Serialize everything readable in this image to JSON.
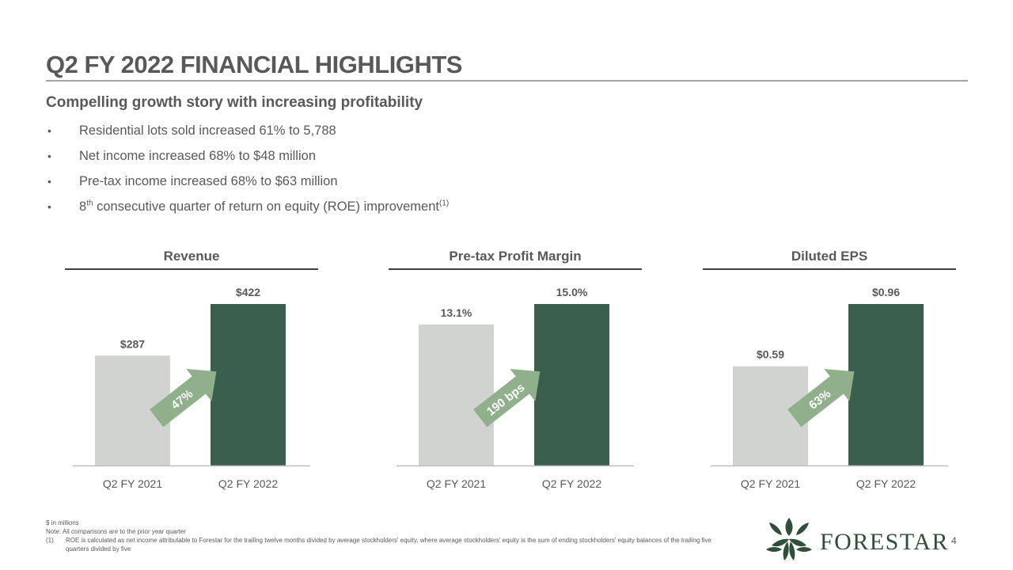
{
  "header": {
    "title": "Q2 FY 2022 FINANCIAL HIGHLIGHTS",
    "subtitle": "Compelling growth story with increasing profitability"
  },
  "bullets": [
    {
      "text": "Residential lots sold increased 61% to 5,788"
    },
    {
      "text": "Net income increased 68% to $48 million"
    },
    {
      "text": "Pre-tax income increased 68% to $63 million"
    },
    {
      "prefix": "8",
      "sup": "th",
      "text": " consecutive quarter of return on equity (ROE) improvement",
      "ref": "(1)"
    }
  ],
  "colors": {
    "prior": "#d0d3cf",
    "current": "#3a5f4e",
    "arrow": "#8fb08a",
    "arrow_text": "#ffffff"
  },
  "chart_data": [
    {
      "type": "bar",
      "title": "Revenue",
      "categories": [
        "Q2 FY 2021",
        "Q2 FY 2022"
      ],
      "values": [
        287,
        422
      ],
      "value_labels": [
        "$287",
        "$422"
      ],
      "change_label": "47%"
    },
    {
      "type": "bar",
      "title": "Pre-tax Profit Margin",
      "categories": [
        "Q2 FY 2021",
        "Q2 FY 2022"
      ],
      "values": [
        13.1,
        15.0
      ],
      "value_labels": [
        "13.1%",
        "15.0%"
      ],
      "change_label": "190 bps"
    },
    {
      "type": "bar",
      "title": "Diluted EPS",
      "categories": [
        "Q2 FY 2021",
        "Q2 FY 2022"
      ],
      "values": [
        0.59,
        0.96
      ],
      "value_labels": [
        "$0.59",
        "$0.96"
      ],
      "change_label": "63%"
    }
  ],
  "footnotes": {
    "units": "$ in millions",
    "note": "Note: All comparisons are to the prior year quarter",
    "fn1_num": "(1)",
    "fn1_text": "ROE is calculated as net income attributable to Forestar for the trailing twelve months divided by average stockholders' equity, where average stockholders' equity is the sum of ending stockholders' equity balances of the trailing five quarters divided by five"
  },
  "brand": {
    "name": "FORESTAR",
    "logo_icon": "forestar-leaf-star-logo"
  },
  "page": {
    "number": "4"
  }
}
